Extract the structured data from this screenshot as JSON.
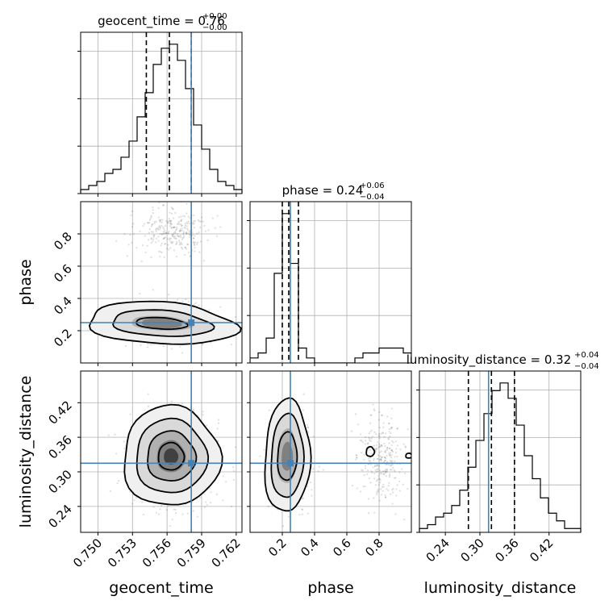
{
  "chart_data": {
    "type": "corner",
    "parameters": [
      "geocent_time",
      "phase",
      "luminosity_distance"
    ],
    "titles": [
      {
        "name": "geocent_time",
        "median": "0.76",
        "plus": "+0.00",
        "minus": "−0.00"
      },
      {
        "name": "phase",
        "median": "0.24",
        "plus": "+0.06",
        "minus": "−0.04"
      },
      {
        "name": "luminosity_distance",
        "median": "0.32",
        "plus": "+0.04",
        "minus": "−0.04"
      }
    ],
    "truths": {
      "geocent_time": 0.7581,
      "phase": 0.25,
      "luminosity_distance": 0.315
    },
    "ranges": {
      "geocent_time": [
        0.7485,
        0.7625
      ],
      "phase": [
        0.0,
        1.0
      ],
      "luminosity_distance": [
        0.195,
        0.475
      ]
    },
    "ticks": {
      "geocent_time": [
        "0.750",
        "0.753",
        "0.756",
        "0.759",
        "0.762"
      ],
      "phase": [
        "0.2",
        "0.4",
        "0.6",
        "0.8"
      ],
      "luminosity_distance": [
        "0.24",
        "0.30",
        "0.36",
        "0.42"
      ]
    },
    "quantiles": {
      "geocent_time": [
        0.7542,
        0.7562,
        0.7581
      ],
      "phase": [
        0.2,
        0.24,
        0.3
      ],
      "luminosity_distance": [
        0.28,
        0.32,
        0.36
      ]
    },
    "hist_geocent_time": [
      1,
      2,
      3,
      5,
      6,
      9,
      13,
      19,
      25,
      32,
      36,
      37,
      33,
      26,
      17,
      11,
      6,
      3,
      2,
      1
    ],
    "hist_phase": [
      1,
      2,
      5,
      18,
      30,
      20,
      3,
      1,
      0,
      0,
      0,
      0,
      0,
      1,
      2,
      2,
      3,
      3,
      3,
      2
    ],
    "hist_luminosity_distance": [
      1,
      2,
      4,
      5,
      7,
      11,
      17,
      24,
      31,
      37,
      39,
      35,
      28,
      20,
      14,
      9,
      5,
      3,
      1,
      1
    ],
    "xlabels": [
      "geocent_time",
      "phase",
      "luminosity_distance"
    ],
    "ylabels": [
      "phase",
      "luminosity_distance"
    ]
  }
}
